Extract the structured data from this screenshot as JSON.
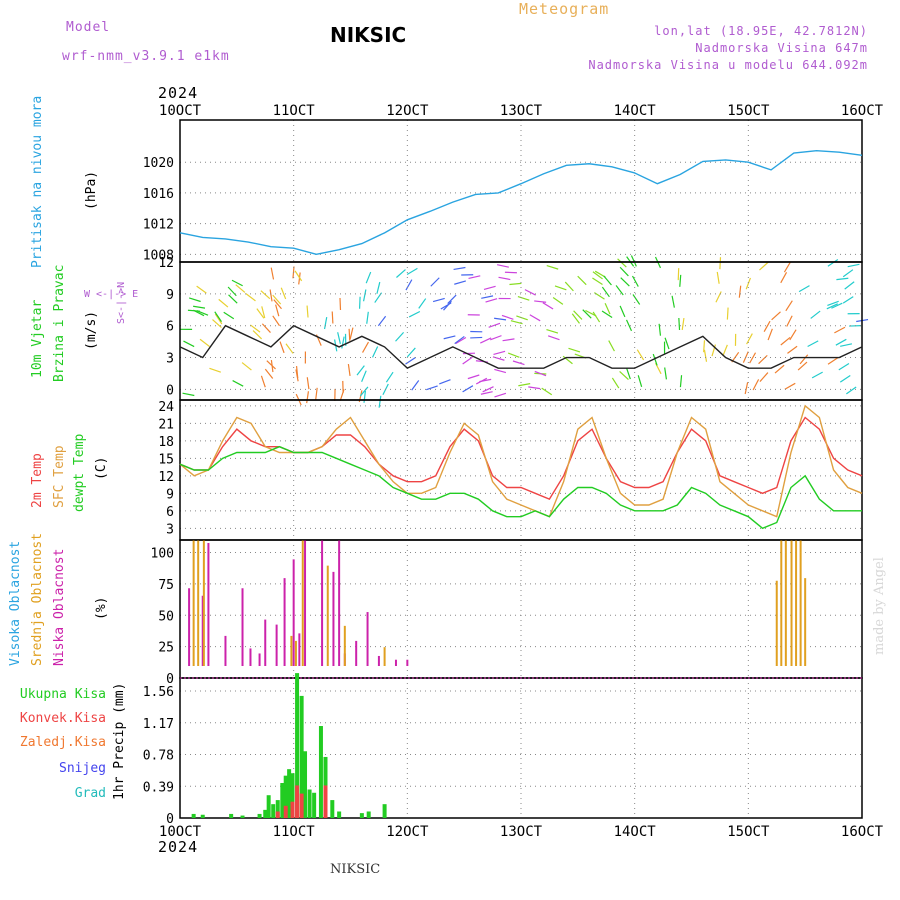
{
  "header": {
    "model_label": "Model",
    "model_name": "wrf-nmm_v3.9.1 e1km",
    "station": "NIKSIC",
    "product": "Meteogram",
    "coords": "lon,lat (18.95E, 42.7812N)",
    "elevation": "Nadmorska Visina 647m",
    "model_elevation": "Nadmorska Visina u modelu 644.092m",
    "year_top": "2024",
    "year_bottom": "2024",
    "footer_station": "NIKSIC",
    "credit": "made by Angel"
  },
  "time_axis": [
    "10OCT",
    "11OCT",
    "12OCT",
    "13OCT",
    "14OCT",
    "15OCT",
    "16OCT"
  ],
  "panel_labels": {
    "pressure": [
      "Pritisak na nivou mora",
      "(hPa)"
    ],
    "wind": [
      "10m Vjetar",
      "Brzina i Pravac",
      "(m/s)"
    ],
    "wind_legend": "W <-|-> E",
    "wind_legend_v": "S<-|->N",
    "temp": [
      "2m Temp",
      "SFC Temp",
      "dewpt Temp",
      "(C)"
    ],
    "cloud": [
      "Visoka Oblacnost",
      "Srednja Oblacnost",
      "Niska Oblacnost",
      "(%)"
    ],
    "precip_legend": [
      "Ukupna Kisa",
      "Konvek.Kisa",
      "Zaledj.Kisa",
      "Snijeg",
      "Grad"
    ],
    "precip_unit": "1hr Precip (mm)"
  },
  "colors": {
    "pressure": "#2aa4e0",
    "temp2m": "#ee4444",
    "sfc": "#e0a040",
    "dewpt": "#22cc22",
    "cloud_high": "#22aadd",
    "cloud_mid": "#e0a020",
    "cloud_low": "#cc22aa",
    "precip_total": "#22cc22",
    "precip_conv": "#ee4444",
    "precip_frz": "#f07830",
    "snow": "#4444ee",
    "hail": "#22bbbb",
    "purple_text": "#b05cd0",
    "grid": "#888888"
  },
  "chart_data": [
    {
      "type": "line",
      "name": "pressure",
      "ylim": [
        1007,
        1025.5
      ],
      "yticks": [
        1008,
        1012,
        1016,
        1020
      ],
      "x": [
        0,
        0.2,
        0.4,
        0.6,
        0.8,
        1.0,
        1.2,
        1.4,
        1.6,
        1.8,
        2.0,
        2.2,
        2.4,
        2.6,
        2.8,
        3.0,
        3.2,
        3.4,
        3.6,
        3.8,
        4.0,
        4.2,
        4.4,
        4.6,
        4.8,
        5.0,
        5.2,
        5.4,
        5.6,
        5.8,
        6.0
      ],
      "series": [
        {
          "values": [
            1010.8,
            1010.2,
            1010.0,
            1009.6,
            1009.0,
            1008.8,
            1008.0,
            1008.6,
            1009.4,
            1010.8,
            1012.5,
            1013.6,
            1014.8,
            1015.8,
            1016.0,
            1017.2,
            1018.5,
            1019.6,
            1019.8,
            1019.4,
            1018.6,
            1017.2,
            1018.4,
            1020.1,
            1020.3,
            1020.0,
            1019.0,
            1021.2,
            1021.5,
            1021.3,
            1020.9
          ]
        }
      ]
    },
    {
      "type": "line",
      "name": "wind_speed",
      "ylim": [
        -1,
        12
      ],
      "yticks": [
        0,
        3,
        6,
        9,
        12
      ],
      "x": [
        0,
        0.2,
        0.4,
        0.6,
        0.8,
        1.0,
        1.2,
        1.4,
        1.6,
        1.8,
        2.0,
        2.2,
        2.4,
        2.6,
        2.8,
        3.0,
        3.2,
        3.4,
        3.6,
        3.8,
        4.0,
        4.2,
        4.4,
        4.6,
        4.8,
        5.0,
        5.2,
        5.4,
        5.6,
        5.8,
        6.0
      ],
      "series": [
        {
          "values": [
            4,
            3,
            6,
            5,
            4,
            6,
            5,
            4,
            5,
            4,
            2,
            3,
            4,
            3,
            2,
            2,
            2,
            3,
            3,
            2,
            2,
            3,
            4,
            5,
            3,
            2,
            2,
            3,
            3,
            3,
            4
          ]
        }
      ]
    },
    {
      "type": "line",
      "name": "temperature",
      "ylim": [
        1,
        25
      ],
      "yticks": [
        3,
        6,
        9,
        12,
        15,
        18,
        21,
        24
      ],
      "x": [
        0,
        0.125,
        0.25,
        0.375,
        0.5,
        0.625,
        0.75,
        0.875,
        1.0,
        1.125,
        1.25,
        1.375,
        1.5,
        1.625,
        1.75,
        1.875,
        2.0,
        2.125,
        2.25,
        2.375,
        2.5,
        2.625,
        2.75,
        2.875,
        3.0,
        3.125,
        3.25,
        3.375,
        3.5,
        3.625,
        3.75,
        3.875,
        4.0,
        4.125,
        4.25,
        4.375,
        4.5,
        4.625,
        4.75,
        4.875,
        5.0,
        5.125,
        5.25,
        5.375,
        5.5,
        5.625,
        5.75,
        5.875,
        6.0
      ],
      "series": [
        {
          "name": "2m Temp",
          "values": [
            14,
            13,
            13,
            17,
            20,
            18,
            17,
            17,
            16,
            16,
            17,
            19,
            19,
            17,
            14,
            12,
            11,
            11,
            12,
            17,
            20,
            18,
            12,
            10,
            10,
            9,
            8,
            12,
            18,
            20,
            15,
            11,
            10,
            10,
            11,
            16,
            20,
            18,
            12,
            11,
            10,
            9,
            10,
            18,
            22,
            20,
            15,
            13,
            12
          ]
        },
        {
          "name": "SFC Temp",
          "values": [
            14,
            12,
            13,
            18,
            22,
            21,
            17,
            16,
            16,
            16,
            17,
            20,
            22,
            18,
            14,
            11,
            9,
            9,
            10,
            16,
            21,
            19,
            11,
            8,
            7,
            6,
            5,
            11,
            20,
            22,
            15,
            9,
            7,
            7,
            8,
            16,
            22,
            20,
            11,
            9,
            7,
            6,
            5,
            16,
            24,
            22,
            13,
            10,
            9
          ]
        },
        {
          "name": "dewpt Temp",
          "values": [
            14,
            13,
            13,
            15,
            16,
            16,
            16,
            17,
            16,
            16,
            16,
            15,
            14,
            13,
            12,
            10,
            9,
            8,
            8,
            9,
            9,
            8,
            6,
            5,
            5,
            6,
            5,
            8,
            10,
            10,
            9,
            7,
            6,
            6,
            6,
            7,
            10,
            9,
            7,
            6,
            5,
            3,
            4,
            10,
            12,
            8,
            6,
            6,
            6
          ]
        }
      ]
    },
    {
      "type": "bar",
      "name": "cloud_cover",
      "ylim": [
        0,
        110
      ],
      "yticks": [
        0,
        25,
        50,
        75,
        100
      ],
      "series": [
        {
          "name": "Niska Oblacnost",
          "x": [
            0.08,
            0.2,
            0.25,
            0.4,
            0.55,
            0.62,
            0.7,
            0.75,
            0.85,
            0.92,
            1.0,
            1.05,
            1.1,
            1.25,
            1.35,
            1.4,
            1.45,
            1.55,
            1.65,
            1.75,
            1.9,
            2.0
          ],
          "values": [
            62,
            56,
            98,
            24,
            62,
            14,
            10,
            37,
            33,
            70,
            85,
            26,
            100,
            100,
            75,
            100,
            10,
            20,
            43,
            8,
            5,
            5
          ]
        },
        {
          "name": "Srednja Oblacnost",
          "x": [
            0.12,
            0.16,
            0.21,
            0.98,
            1.02,
            1.08,
            1.3,
            1.45,
            1.8,
            5.25,
            5.29,
            5.33,
            5.38,
            5.42,
            5.46,
            5.5
          ],
          "values": [
            100,
            100,
            100,
            24,
            20,
            100,
            80,
            32,
            15,
            68,
            100,
            100,
            100,
            100,
            100,
            70
          ]
        },
        {
          "name": "Visoka Oblacnost",
          "x": [],
          "values": []
        }
      ]
    },
    {
      "type": "bar",
      "name": "precipitation",
      "ylim": [
        0,
        1.72
      ],
      "yticks": [
        0,
        0.39,
        0.78,
        1.17,
        1.56
      ],
      "series": [
        {
          "name": "Ukupna Kisa",
          "x": [
            0.12,
            0.2,
            0.45,
            0.55,
            0.7,
            0.75,
            0.78,
            0.82,
            0.86,
            0.9,
            0.93,
            0.96,
            0.99,
            1.03,
            1.07,
            1.1,
            1.14,
            1.18,
            1.24,
            1.28,
            1.34,
            1.4,
            1.6,
            1.66,
            1.8
          ],
          "values": [
            0.05,
            0.04,
            0.05,
            0.03,
            0.05,
            0.1,
            0.28,
            0.17,
            0.22,
            0.43,
            0.52,
            0.6,
            0.55,
            1.78,
            1.5,
            0.82,
            0.35,
            0.31,
            1.13,
            0.75,
            0.22,
            0.08,
            0.06,
            0.08,
            0.17
          ]
        },
        {
          "name": "Konvek.Kisa",
          "x": [
            0.86,
            0.93,
            0.99,
            1.03,
            1.07,
            1.28
          ],
          "values": [
            0.08,
            0.15,
            0.2,
            0.4,
            0.3,
            0.4
          ]
        },
        {
          "name": "Zaledj.Kisa",
          "x": [],
          "values": []
        },
        {
          "name": "Snijeg",
          "x": [],
          "values": []
        },
        {
          "name": "Grad",
          "x": [],
          "values": []
        }
      ]
    }
  ]
}
